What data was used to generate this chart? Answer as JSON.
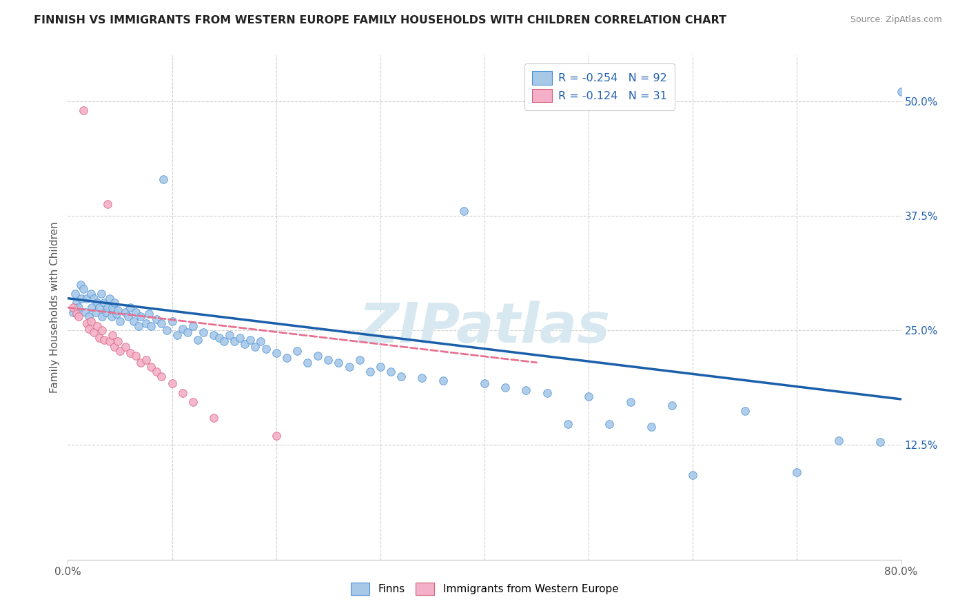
{
  "title": "FINNISH VS IMMIGRANTS FROM WESTERN EUROPE FAMILY HOUSEHOLDS WITH CHILDREN CORRELATION CHART",
  "source": "Source: ZipAtlas.com",
  "ylabel": "Family Households with Children",
  "xlim": [
    0.0,
    0.8
  ],
  "ylim": [
    0.0,
    0.55
  ],
  "yticks": [
    0.125,
    0.25,
    0.375,
    0.5
  ],
  "ytick_labels": [
    "12.5%",
    "25.0%",
    "37.5%",
    "50.0%"
  ],
  "xticks": [
    0.0,
    0.8
  ],
  "xtick_labels": [
    "0.0%",
    "80.0%"
  ],
  "watermark": "ZIPatlas",
  "legend_R1": "-0.254",
  "legend_N1": "92",
  "legend_R2": "-0.124",
  "legend_N2": "31",
  "color_finns_fill": "#a8c8e8",
  "color_finns_edge": "#4a90d9",
  "color_imm_fill": "#f4b0c8",
  "color_imm_edge": "#d4607a",
  "color_line_finns": "#1a5faa",
  "color_line_imm": "#e87090",
  "tick_color": "#2060b0",
  "grid_color": "#d0d0d0",
  "finns_x": [
    0.005,
    0.007,
    0.008,
    0.01,
    0.012,
    0.013,
    0.015,
    0.017,
    0.018,
    0.02,
    0.022,
    0.023,
    0.025,
    0.027,
    0.028,
    0.03,
    0.032,
    0.033,
    0.035,
    0.037,
    0.038,
    0.04,
    0.042,
    0.043,
    0.045,
    0.047,
    0.048,
    0.05,
    0.055,
    0.058,
    0.06,
    0.063,
    0.065,
    0.068,
    0.07,
    0.075,
    0.078,
    0.08,
    0.085,
    0.09,
    0.092,
    0.095,
    0.1,
    0.105,
    0.11,
    0.115,
    0.12,
    0.125,
    0.13,
    0.14,
    0.145,
    0.15,
    0.155,
    0.16,
    0.165,
    0.17,
    0.175,
    0.18,
    0.185,
    0.19,
    0.2,
    0.21,
    0.22,
    0.23,
    0.24,
    0.25,
    0.26,
    0.27,
    0.28,
    0.29,
    0.3,
    0.31,
    0.32,
    0.34,
    0.36,
    0.38,
    0.4,
    0.42,
    0.44,
    0.46,
    0.48,
    0.5,
    0.52,
    0.54,
    0.56,
    0.58,
    0.6,
    0.65,
    0.7,
    0.74,
    0.78,
    0.8
  ],
  "finns_y": [
    0.27,
    0.29,
    0.28,
    0.275,
    0.3,
    0.285,
    0.295,
    0.27,
    0.285,
    0.265,
    0.29,
    0.275,
    0.285,
    0.27,
    0.28,
    0.275,
    0.29,
    0.265,
    0.28,
    0.27,
    0.275,
    0.285,
    0.265,
    0.275,
    0.28,
    0.268,
    0.272,
    0.26,
    0.27,
    0.265,
    0.275,
    0.26,
    0.27,
    0.255,
    0.265,
    0.258,
    0.268,
    0.255,
    0.262,
    0.258,
    0.415,
    0.25,
    0.26,
    0.245,
    0.252,
    0.248,
    0.255,
    0.24,
    0.248,
    0.245,
    0.242,
    0.238,
    0.245,
    0.238,
    0.242,
    0.235,
    0.24,
    0.232,
    0.238,
    0.23,
    0.225,
    0.22,
    0.228,
    0.215,
    0.222,
    0.218,
    0.215,
    0.21,
    0.218,
    0.205,
    0.21,
    0.205,
    0.2,
    0.198,
    0.195,
    0.38,
    0.192,
    0.188,
    0.185,
    0.182,
    0.148,
    0.178,
    0.148,
    0.172,
    0.145,
    0.168,
    0.092,
    0.162,
    0.095,
    0.13,
    0.128,
    0.51
  ],
  "imm_x": [
    0.005,
    0.008,
    0.01,
    0.015,
    0.018,
    0.02,
    0.022,
    0.025,
    0.028,
    0.03,
    0.033,
    0.035,
    0.038,
    0.04,
    0.043,
    0.045,
    0.048,
    0.05,
    0.055,
    0.06,
    0.065,
    0.07,
    0.075,
    0.08,
    0.085,
    0.09,
    0.1,
    0.11,
    0.12,
    0.14,
    0.2
  ],
  "imm_y": [
    0.275,
    0.268,
    0.265,
    0.49,
    0.258,
    0.252,
    0.26,
    0.248,
    0.255,
    0.242,
    0.25,
    0.24,
    0.388,
    0.238,
    0.245,
    0.232,
    0.238,
    0.228,
    0.232,
    0.225,
    0.222,
    0.215,
    0.218,
    0.21,
    0.205,
    0.2,
    0.192,
    0.182,
    0.172,
    0.155,
    0.135
  ],
  "finns_line_x": [
    0.0,
    0.8
  ],
  "finns_line_y": [
    0.285,
    0.175
  ],
  "imm_line_x": [
    0.0,
    0.45
  ],
  "imm_line_y": [
    0.275,
    0.215
  ]
}
